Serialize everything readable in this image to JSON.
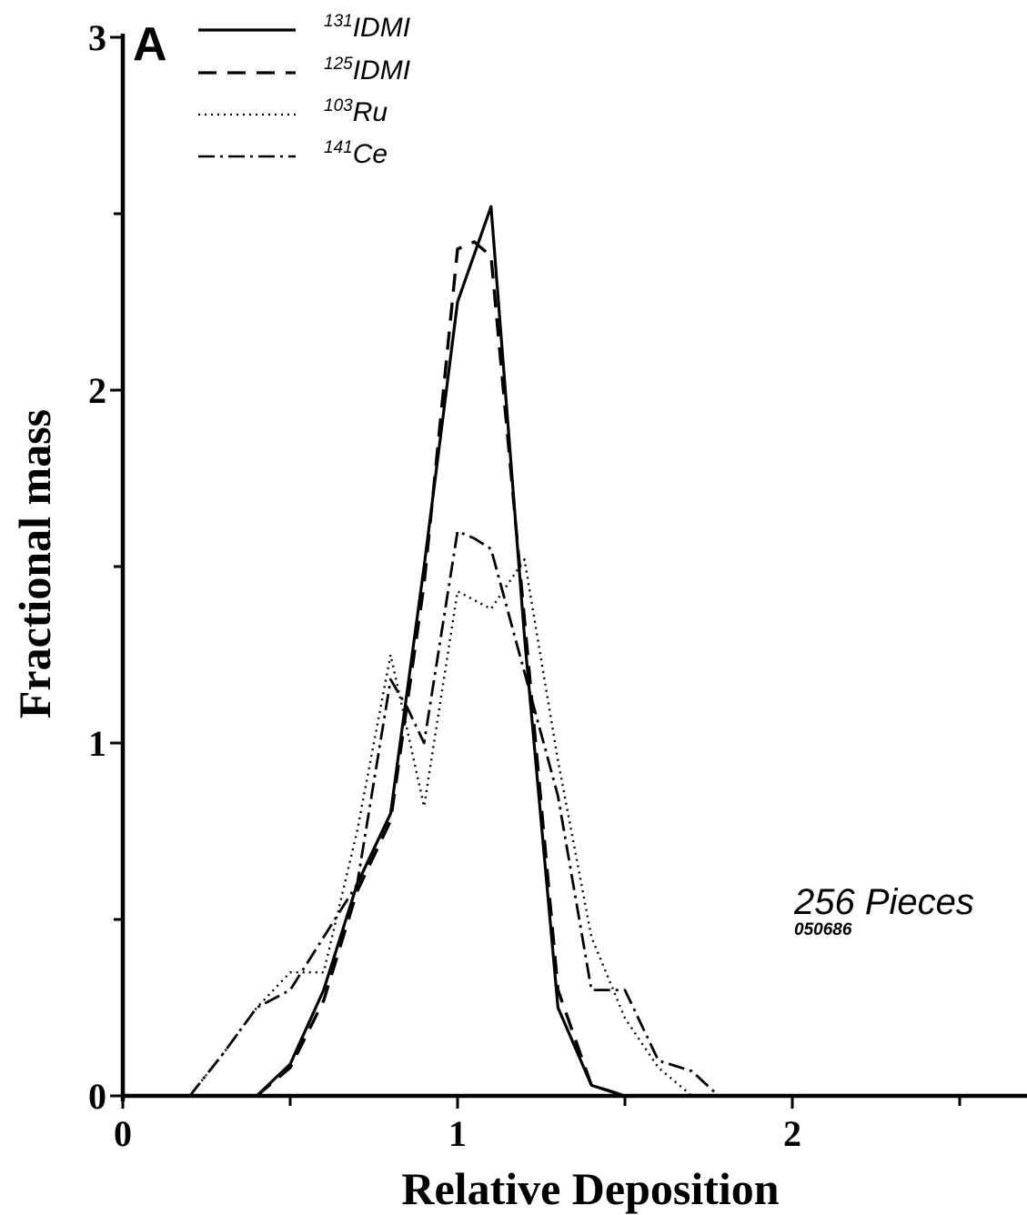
{
  "chart_data": {
    "type": "line",
    "panel_label": "A",
    "xlabel": "Relative Deposition",
    "ylabel": "Fractional mass",
    "xlim": [
      0,
      2.7
    ],
    "ylim": [
      0,
      3
    ],
    "x_ticks": [
      0,
      0.5,
      1,
      1.5,
      2,
      2.5
    ],
    "x_tick_labels": [
      "0",
      "",
      "1",
      "",
      "2",
      ""
    ],
    "y_ticks": [
      0,
      0.5,
      1,
      1.5,
      2,
      2.5,
      3
    ],
    "y_tick_labels": [
      "0",
      "",
      "1",
      "",
      "2",
      "",
      "3"
    ],
    "grid": false,
    "legend_position": "top-left",
    "annotation": {
      "main": "256 Pieces",
      "sub": "050686"
    },
    "series": [
      {
        "name": "IDMI",
        "isotope_mass": "131",
        "style": "solid",
        "x": [
          0.4,
          0.5,
          0.6,
          0.7,
          0.8,
          0.9,
          1.0,
          1.1,
          1.2,
          1.3,
          1.4,
          1.5
        ],
        "y": [
          0.0,
          0.09,
          0.3,
          0.6,
          0.8,
          1.5,
          2.25,
          2.52,
          1.3,
          0.25,
          0.03,
          0.0
        ]
      },
      {
        "name": "IDMI",
        "isotope_mass": "125",
        "style": "dashed",
        "x": [
          0.4,
          0.5,
          0.6,
          0.7,
          0.8,
          0.9,
          1.0,
          1.05,
          1.1,
          1.2,
          1.3,
          1.4,
          1.5
        ],
        "y": [
          0.0,
          0.08,
          0.27,
          0.58,
          0.78,
          1.45,
          2.4,
          2.42,
          2.38,
          1.35,
          0.3,
          0.03,
          0.0
        ]
      },
      {
        "name": "Ru",
        "isotope_mass": "103",
        "style": "dotted",
        "x": [
          0.2,
          0.3,
          0.4,
          0.5,
          0.6,
          0.7,
          0.8,
          0.9,
          1.0,
          1.1,
          1.2,
          1.3,
          1.4,
          1.5,
          1.6,
          1.7
        ],
        "y": [
          0.0,
          0.12,
          0.25,
          0.35,
          0.35,
          0.75,
          1.25,
          0.82,
          1.43,
          1.38,
          1.52,
          0.95,
          0.45,
          0.22,
          0.08,
          0.0
        ]
      },
      {
        "name": "Ce",
        "isotope_mass": "141",
        "style": "dashdot",
        "x": [
          0.2,
          0.3,
          0.4,
          0.5,
          0.6,
          0.7,
          0.8,
          0.85,
          0.9,
          1.0,
          1.05,
          1.1,
          1.2,
          1.3,
          1.4,
          1.5,
          1.6,
          1.7,
          1.78
        ],
        "y": [
          0.0,
          0.12,
          0.25,
          0.3,
          0.45,
          0.6,
          1.18,
          1.1,
          1.0,
          1.6,
          1.58,
          1.55,
          1.2,
          0.85,
          0.3,
          0.3,
          0.1,
          0.07,
          0.0
        ]
      }
    ]
  }
}
